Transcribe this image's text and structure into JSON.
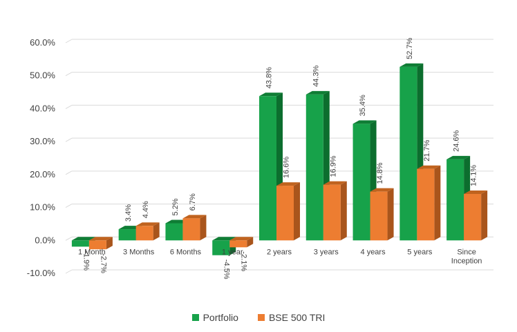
{
  "chart_data": {
    "type": "bar",
    "categories": [
      "1 Month",
      "3 Months",
      "6 Months",
      "1 year",
      "2 years",
      "3 years",
      "4 years",
      "5 years",
      "Since\nInception"
    ],
    "series": [
      {
        "name": "Portfolio",
        "values": [
          -1.9,
          3.4,
          5.2,
          -4.5,
          43.8,
          44.3,
          35.4,
          52.7,
          24.6
        ],
        "labels": [
          "-1.9%",
          "3.4%",
          "5.2%",
          "-4.5%",
          "43.8%",
          "44.3%",
          "35.4%",
          "52.7%",
          "24.6%"
        ]
      },
      {
        "name": "BSE 500 TRI",
        "values": [
          -2.7,
          4.4,
          6.7,
          -2.1,
          16.6,
          16.9,
          14.8,
          21.7,
          14.1
        ],
        "labels": [
          "-2.7%",
          "4.4%",
          "6.7%",
          "-2.1%",
          "16.6%",
          "16.9%",
          "14.8%",
          "21.7%",
          "14.1%"
        ]
      }
    ],
    "yticks": [
      "-10.0%",
      "0.0%",
      "10.0%",
      "20.0%",
      "30.0%",
      "40.0%",
      "50.0%",
      "60.0%"
    ],
    "ylim": [
      -10,
      60
    ],
    "grid": true,
    "legend": "bottom",
    "colors": {
      "Portfolio": "#17a24a",
      "BSE 500 TRI": "#ed7d31"
    }
  }
}
